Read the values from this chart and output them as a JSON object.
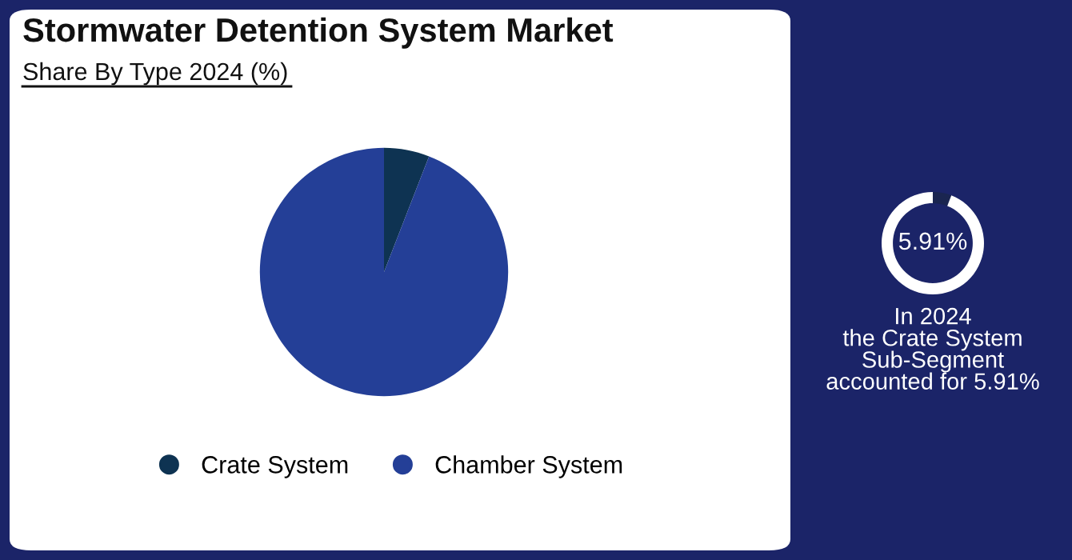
{
  "chart_data": [
    {
      "type": "pie",
      "title": "Stormwater Detention System Market",
      "subtitle": "Share By Type 2024 (%)",
      "categories": [
        "Crate System",
        "Chamber System"
      ],
      "values": [
        5.91,
        94.09
      ],
      "colors": [
        "#0e3352",
        "#243f97"
      ],
      "legend": "bottom"
    },
    {
      "type": "donut",
      "categories": [
        null,
        null
      ],
      "values": [
        5.91,
        94.09
      ],
      "colors": [
        "#1a2550",
        "#ffffff"
      ],
      "annotations": [
        "5.91%",
        "In 2024\nthe Crate System\nSub-Segment\naccounted for 5.91%"
      ]
    }
  ]
}
